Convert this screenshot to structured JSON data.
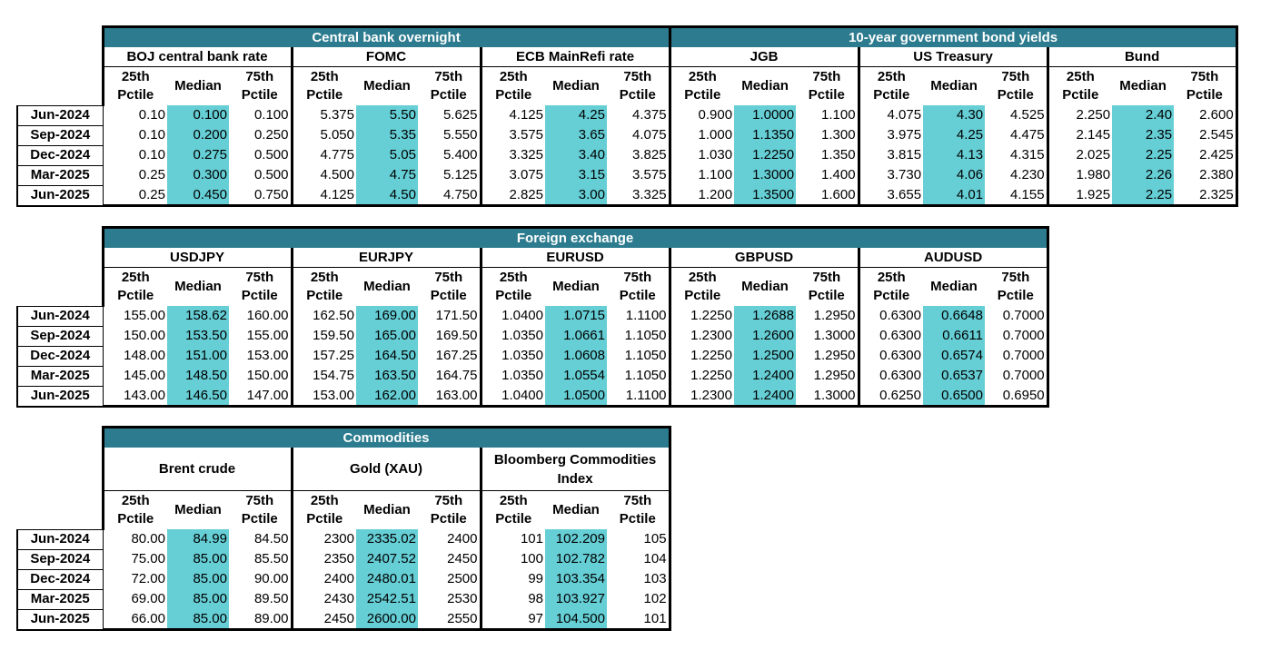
{
  "colors": {
    "title_bg": "#2c7b8e",
    "median_bg": "#66cfd6"
  },
  "row_labels": [
    "Jun-2024",
    "Sep-2024",
    "Dec-2024",
    "Mar-2025",
    "Jun-2025"
  ],
  "col_headers": {
    "p25": "25th\nPctile",
    "median": "Median",
    "p75": "75th\nPctile"
  },
  "tables": [
    {
      "titles": [
        {
          "text": "Central bank overnight",
          "span": 3
        },
        {
          "text": "10-year government bond yields",
          "span": 3
        }
      ],
      "groups": [
        {
          "name": "BOJ central bank rate",
          "rows": [
            [
              "0.10",
              "0.100",
              "0.100"
            ],
            [
              "0.10",
              "0.200",
              "0.250"
            ],
            [
              "0.10",
              "0.275",
              "0.500"
            ],
            [
              "0.25",
              "0.300",
              "0.500"
            ],
            [
              "0.25",
              "0.450",
              "0.750"
            ]
          ]
        },
        {
          "name": "FOMC",
          "rows": [
            [
              "5.375",
              "5.50",
              "5.625"
            ],
            [
              "5.050",
              "5.35",
              "5.550"
            ],
            [
              "4.775",
              "5.05",
              "5.400"
            ],
            [
              "4.500",
              "4.75",
              "5.125"
            ],
            [
              "4.125",
              "4.50",
              "4.750"
            ]
          ]
        },
        {
          "name": "ECB MainRefi rate",
          "rows": [
            [
              "4.125",
              "4.25",
              "4.375"
            ],
            [
              "3.575",
              "3.65",
              "4.075"
            ],
            [
              "3.325",
              "3.40",
              "3.825"
            ],
            [
              "3.075",
              "3.15",
              "3.575"
            ],
            [
              "2.825",
              "3.00",
              "3.325"
            ]
          ]
        },
        {
          "name": "JGB",
          "rows": [
            [
              "0.900",
              "1.0000",
              "1.100"
            ],
            [
              "1.000",
              "1.1350",
              "1.300"
            ],
            [
              "1.030",
              "1.2250",
              "1.350"
            ],
            [
              "1.100",
              "1.3000",
              "1.400"
            ],
            [
              "1.200",
              "1.3500",
              "1.600"
            ]
          ]
        },
        {
          "name": "US Treasury",
          "rows": [
            [
              "4.075",
              "4.30",
              "4.525"
            ],
            [
              "3.975",
              "4.25",
              "4.475"
            ],
            [
              "3.815",
              "4.13",
              "4.315"
            ],
            [
              "3.730",
              "4.06",
              "4.230"
            ],
            [
              "3.655",
              "4.01",
              "4.155"
            ]
          ]
        },
        {
          "name": "Bund",
          "rows": [
            [
              "2.250",
              "2.40",
              "2.600"
            ],
            [
              "2.145",
              "2.35",
              "2.545"
            ],
            [
              "2.025",
              "2.25",
              "2.425"
            ],
            [
              "1.980",
              "2.26",
              "2.380"
            ],
            [
              "1.925",
              "2.25",
              "2.325"
            ]
          ]
        }
      ]
    },
    {
      "titles": [
        {
          "text": "Foreign exchange",
          "span": 5
        }
      ],
      "groups": [
        {
          "name": "USDJPY",
          "rows": [
            [
              "155.00",
              "158.62",
              "160.00"
            ],
            [
              "150.00",
              "153.50",
              "155.00"
            ],
            [
              "148.00",
              "151.00",
              "153.00"
            ],
            [
              "145.00",
              "148.50",
              "150.00"
            ],
            [
              "143.00",
              "146.50",
              "147.00"
            ]
          ]
        },
        {
          "name": "EURJPY",
          "rows": [
            [
              "162.50",
              "169.00",
              "171.50"
            ],
            [
              "159.50",
              "165.00",
              "169.50"
            ],
            [
              "157.25",
              "164.50",
              "167.25"
            ],
            [
              "154.75",
              "163.50",
              "164.75"
            ],
            [
              "153.00",
              "162.00",
              "163.00"
            ]
          ]
        },
        {
          "name": "EURUSD",
          "rows": [
            [
              "1.0400",
              "1.0715",
              "1.1100"
            ],
            [
              "1.0350",
              "1.0661",
              "1.1050"
            ],
            [
              "1.0350",
              "1.0608",
              "1.1050"
            ],
            [
              "1.0350",
              "1.0554",
              "1.1050"
            ],
            [
              "1.0400",
              "1.0500",
              "1.1100"
            ]
          ]
        },
        {
          "name": "GBPUSD",
          "rows": [
            [
              "1.2250",
              "1.2688",
              "1.2950"
            ],
            [
              "1.2300",
              "1.2600",
              "1.3000"
            ],
            [
              "1.2250",
              "1.2500",
              "1.2950"
            ],
            [
              "1.2250",
              "1.2400",
              "1.2950"
            ],
            [
              "1.2300",
              "1.2400",
              "1.3000"
            ]
          ]
        },
        {
          "name": "AUDUSD",
          "rows": [
            [
              "0.6300",
              "0.6648",
              "0.7000"
            ],
            [
              "0.6300",
              "0.6611",
              "0.7000"
            ],
            [
              "0.6300",
              "0.6574",
              "0.7000"
            ],
            [
              "0.6300",
              "0.6537",
              "0.7000"
            ],
            [
              "0.6250",
              "0.6500",
              "0.6950"
            ]
          ]
        }
      ]
    },
    {
      "titles": [
        {
          "text": "Commodities",
          "span": 3
        }
      ],
      "groups": [
        {
          "name": "Brent crude",
          "rows": [
            [
              "80.00",
              "84.99",
              "84.50"
            ],
            [
              "75.00",
              "85.00",
              "85.50"
            ],
            [
              "72.00",
              "85.00",
              "90.00"
            ],
            [
              "69.00",
              "85.00",
              "89.50"
            ],
            [
              "66.00",
              "85.00",
              "89.00"
            ]
          ]
        },
        {
          "name": "Gold (XAU)",
          "rows": [
            [
              "2300",
              "2335.02",
              "2400"
            ],
            [
              "2350",
              "2407.52",
              "2450"
            ],
            [
              "2400",
              "2480.01",
              "2500"
            ],
            [
              "2430",
              "2542.51",
              "2530"
            ],
            [
              "2450",
              "2600.00",
              "2550"
            ]
          ]
        },
        {
          "name": "Bloomberg Commodities Index",
          "rows": [
            [
              "101",
              "102.209",
              "105"
            ],
            [
              "100",
              "102.782",
              "104"
            ],
            [
              "99",
              "103.354",
              "103"
            ],
            [
              "98",
              "103.927",
              "102"
            ],
            [
              "97",
              "104.500",
              "101"
            ]
          ]
        }
      ]
    }
  ]
}
